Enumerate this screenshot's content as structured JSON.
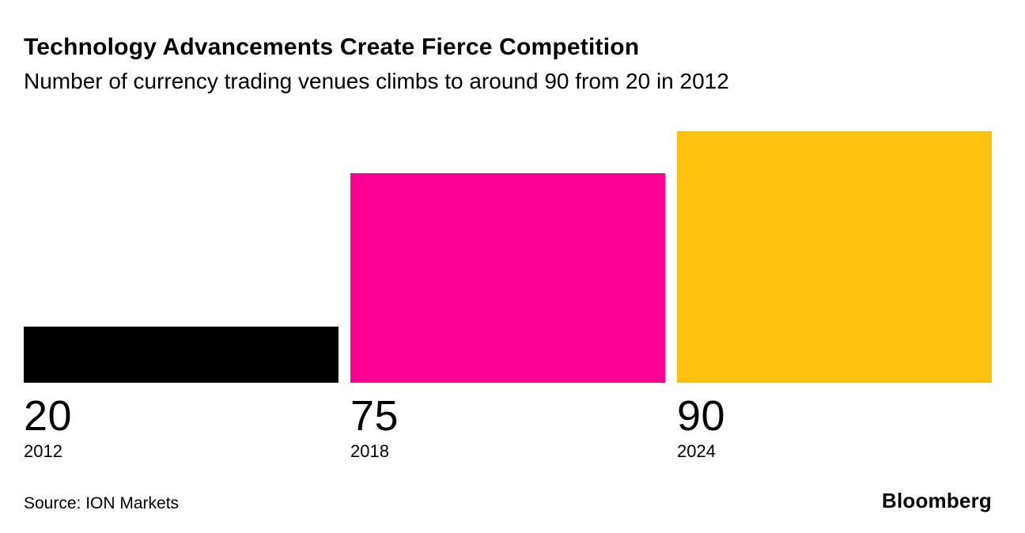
{
  "header": {
    "title": "Technology Advancements Create Fierce Competition",
    "subtitle": "Number of currency trading venues climbs to around 90 from 20 in 2012"
  },
  "chart_data": {
    "type": "bar",
    "title": "Technology Advancements Create Fierce Competition",
    "subtitle": "Number of currency trading venues climbs to around 90 from 20 in 2012",
    "categories": [
      "2012",
      "2018",
      "2024"
    ],
    "values": [
      20,
      75,
      90
    ],
    "value_labels": [
      "20",
      "75",
      "90"
    ],
    "bar_colors": [
      "#000000",
      "#FF0096",
      "#FDC110"
    ],
    "xlabel": "",
    "ylabel": "",
    "ylim": [
      0,
      90
    ],
    "grid": false,
    "legend": "none",
    "orientation": "vertical",
    "value_label_position": "below-bar",
    "category_label_position": "below-value"
  },
  "footer": {
    "source": "Source: ION Markets",
    "brand": "Bloomberg"
  }
}
